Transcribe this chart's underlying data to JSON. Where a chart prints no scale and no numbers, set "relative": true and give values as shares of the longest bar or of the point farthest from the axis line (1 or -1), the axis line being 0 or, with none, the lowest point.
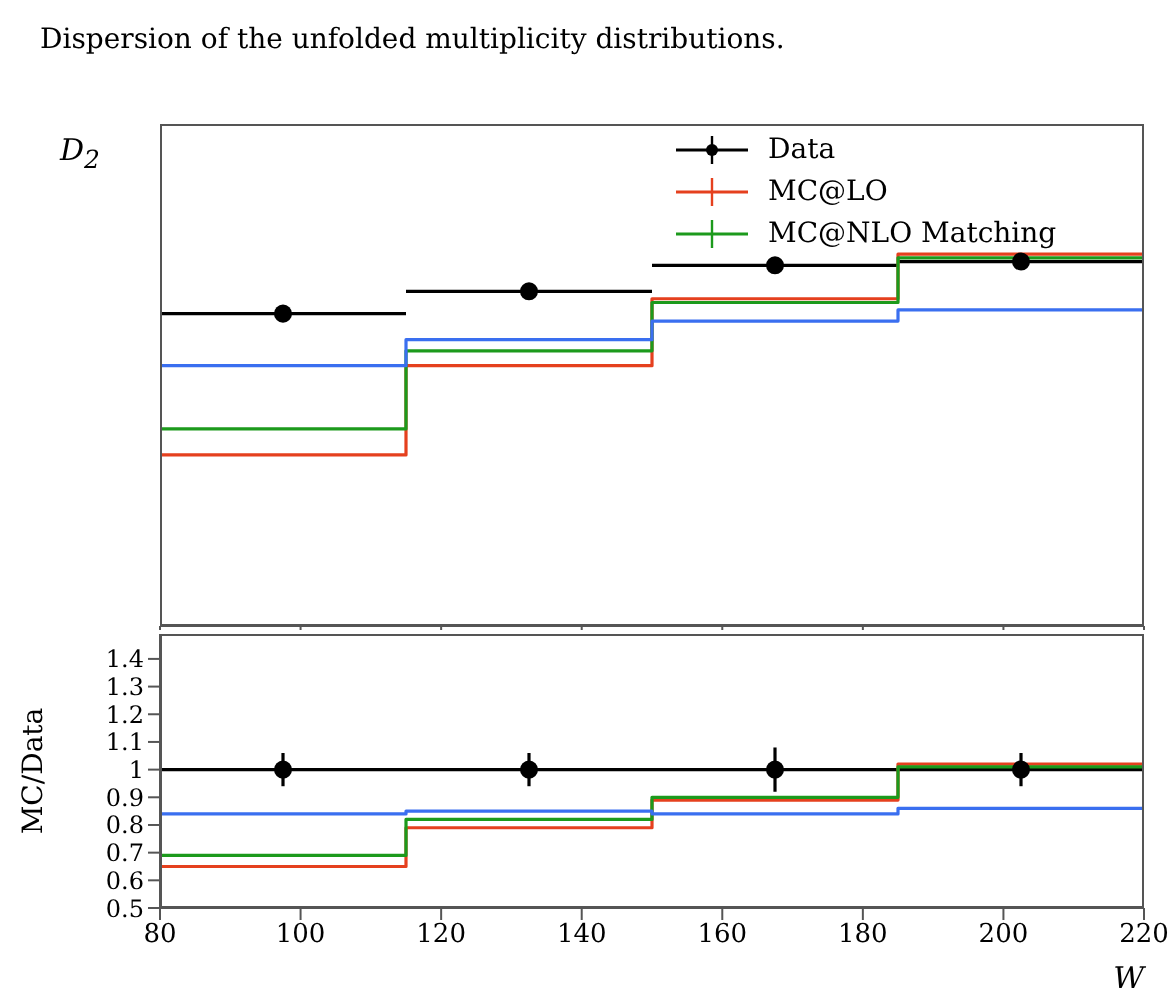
{
  "chart_data": [
    {
      "type": "histogram",
      "title": "Dispersion of the unfolded multiplicity distributions.",
      "ylabel": "D$_{2}$",
      "relative": true,
      "xlim": [
        80,
        220
      ],
      "xticks": [
        80,
        100,
        120,
        140,
        160,
        180,
        200,
        220
      ],
      "tick_labels": false,
      "legend": "top right",
      "bins": [
        80,
        115,
        150,
        185,
        220
      ],
      "series": [
        {
          "name": "Data",
          "type": "scatter",
          "color": "#000000",
          "marker": "circle",
          "x": [
            97.5,
            132.5,
            167.5,
            202.5
          ],
          "values": [
            0.84,
            0.9,
            0.97,
            0.98
          ],
          "xerrors": [
            17.5,
            17.5,
            17.5,
            17.5
          ]
        },
        {
          "name": "MC@LO",
          "color": "#e5401e",
          "values": [
            0.46,
            0.7,
            0.88,
            1
          ]
        },
        {
          "name": "MC@NLO Matching",
          "color": "#1c9a1c",
          "values": [
            0.53,
            0.74,
            0.87,
            0.99
          ]
        },
        {
          "color": "#3a6ff0",
          "values": [
            0.7,
            0.77,
            0.82,
            0.85
          ]
        }
      ]
    },
    {
      "type": "histogram",
      "xlabel": "W",
      "ylabel": "MC/Data",
      "xlim": [
        80,
        220
      ],
      "xticks": [
        80,
        100,
        120,
        140,
        160,
        180,
        200,
        220
      ],
      "ylim": [
        0.5,
        1.49
      ],
      "yticks": [
        0.5,
        0.6,
        0.7,
        0.8,
        0.9,
        1,
        1.1,
        1.2,
        1.3,
        1.4
      ],
      "ref_lines": [
        {
          "axis": "y",
          "value": 1,
          "color": "#000000"
        }
      ],
      "bins": [
        80,
        115,
        150,
        185,
        220
      ],
      "series": [
        {
          "type": "scatter",
          "color": "#000000",
          "marker": "circle",
          "x": [
            97.5,
            132.5,
            167.5,
            202.5
          ],
          "values": [
            1,
            1,
            1,
            1
          ],
          "errors": [
            0.06,
            0.06,
            0.08,
            0.06
          ]
        },
        {
          "color": "#e5401e",
          "values": [
            0.65,
            0.79,
            0.89,
            1.02
          ]
        },
        {
          "color": "#1c9a1c",
          "values": [
            0.69,
            0.82,
            0.9,
            1.01
          ]
        },
        {
          "color": "#3a6ff0",
          "values": [
            0.84,
            0.85,
            0.84,
            0.86
          ]
        }
      ]
    }
  ]
}
